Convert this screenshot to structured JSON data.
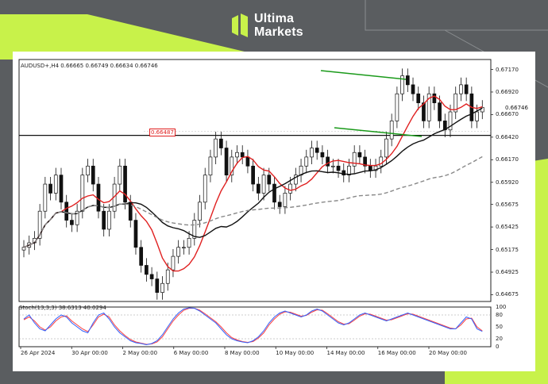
{
  "brand": {
    "name_line1": "Ultima",
    "name_line2": "Markets",
    "accent": "#c8f24a",
    "background": "#5a5d60"
  },
  "chart": {
    "header": "AUDUSD+,H4  0.66665 0.66749 0.66634 0.66746",
    "marker_label": "0.66487",
    "current_price": "0.66746",
    "stoch_label": "Stoch(13,3,3) 38.6313 40.0294",
    "price_ticks": [
      "0.67170",
      "0.66920",
      "0.66670",
      "0.66420",
      "0.66170",
      "0.65920",
      "0.65675",
      "0.65425",
      "0.65175",
      "0.64925",
      "0.64675"
    ],
    "stoch_ticks": [
      "100",
      "80",
      "50",
      "20",
      "0"
    ],
    "time_ticks": [
      "26 Apr 2024",
      "30 Apr 00:00",
      "2 May 00:00",
      "6 May 00:00",
      "8 May 00:00",
      "10 May 00:00",
      "14 May 00:00",
      "16 May 00:00",
      "20 May 00:00"
    ],
    "colors": {
      "ma_fast": "#e02020",
      "ma_slow": "#111111",
      "ma_long": "#888888",
      "channel": "#1a9a1a",
      "stoch_main": "#3060ff",
      "stoch_signal": "#ff4040"
    }
  },
  "chart_data": {
    "type": "candlestick",
    "symbol": "AUDUSD+",
    "timeframe": "H4",
    "ylim": [
      0.646,
      0.6728
    ],
    "closes": [
      0.652,
      0.6525,
      0.653,
      0.656,
      0.659,
      0.658,
      0.66,
      0.657,
      0.655,
      0.6545,
      0.656,
      0.66,
      0.661,
      0.659,
      0.656,
      0.654,
      0.656,
      0.659,
      0.661,
      0.657,
      0.655,
      0.652,
      0.65,
      0.649,
      0.6485,
      0.647,
      0.648,
      0.6495,
      0.651,
      0.652,
      0.652,
      0.653,
      0.655,
      0.657,
      0.66,
      0.662,
      0.664,
      0.663,
      0.66,
      0.662,
      0.6625,
      0.662,
      0.661,
      0.659,
      0.658,
      0.66,
      0.659,
      0.657,
      0.6565,
      0.658,
      0.659,
      0.66,
      0.661,
      0.662,
      0.663,
      0.6625,
      0.662,
      0.661,
      0.661,
      0.6605,
      0.66,
      0.661,
      0.6625,
      0.662,
      0.661,
      0.6605,
      0.661,
      0.662,
      0.664,
      0.666,
      0.669,
      0.671,
      0.67,
      0.669,
      0.668,
      0.666,
      0.669,
      0.668,
      0.666,
      0.665,
      0.667,
      0.669,
      0.67,
      0.669,
      0.666,
      0.667,
      0.6675
    ],
    "horizontal_level": 0.6644,
    "marker_value": 0.66487,
    "stoch_main": [
      70,
      80,
      60,
      45,
      40,
      55,
      70,
      80,
      75,
      60,
      50,
      40,
      35,
      60,
      80,
      85,
      70,
      50,
      35,
      25,
      15,
      10,
      8,
      5,
      8,
      15,
      30,
      50,
      70,
      85,
      95,
      98,
      97,
      90,
      80,
      70,
      60,
      45,
      30,
      20,
      15,
      12,
      10,
      15,
      25,
      40,
      60,
      75,
      85,
      90,
      85,
      80,
      75,
      80,
      90,
      95,
      90,
      80,
      70,
      60,
      55,
      60,
      70,
      80,
      85,
      80,
      75,
      70,
      65,
      70,
      75,
      80,
      85,
      80,
      75,
      70,
      65,
      60,
      55,
      50,
      45,
      45,
      60,
      75,
      70,
      45,
      38.6
    ],
    "stoch_signal": [
      68,
      75,
      65,
      50,
      42,
      50,
      65,
      75,
      78,
      65,
      55,
      45,
      38,
      55,
      75,
      82,
      75,
      55,
      40,
      28,
      18,
      12,
      9,
      6,
      7,
      12,
      25,
      45,
      65,
      80,
      92,
      97,
      97,
      92,
      83,
      73,
      63,
      50,
      35,
      23,
      17,
      13,
      11,
      13,
      22,
      35,
      55,
      70,
      82,
      88,
      87,
      82,
      77,
      79,
      87,
      93,
      92,
      83,
      73,
      63,
      57,
      58,
      67,
      77,
      83,
      82,
      77,
      72,
      67,
      68,
      73,
      78,
      83,
      82,
      77,
      72,
      67,
      62,
      57,
      52,
      47,
      45,
      55,
      70,
      72,
      50,
      40.0
    ]
  }
}
